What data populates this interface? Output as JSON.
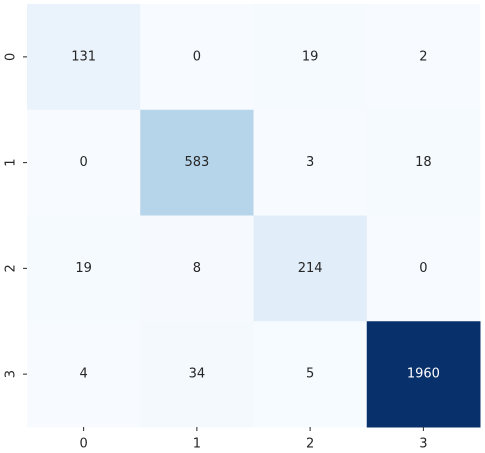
{
  "chart_data": {
    "type": "heatmap",
    "x_categories": [
      "0",
      "1",
      "2",
      "3"
    ],
    "y_categories": [
      "0",
      "1",
      "2",
      "3"
    ],
    "values": [
      [
        131,
        0,
        19,
        2
      ],
      [
        0,
        583,
        3,
        18
      ],
      [
        19,
        8,
        214,
        0
      ],
      [
        4,
        34,
        5,
        1960
      ]
    ],
    "colormap": [
      "#f7fbff",
      "#deebf7",
      "#c6dbef",
      "#9ecae1",
      "#6baed6",
      "#4292c6",
      "#2171b5",
      "#08519c",
      "#08306b"
    ]
  }
}
